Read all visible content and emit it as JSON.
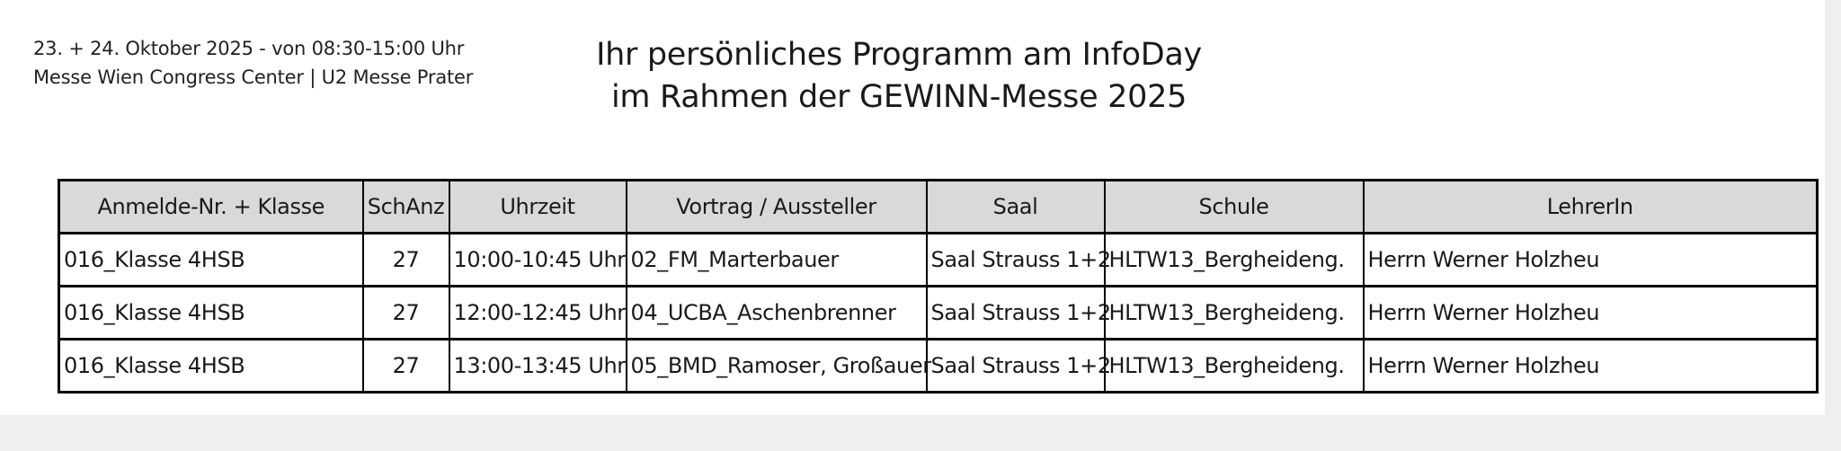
{
  "event_info": {
    "date_line": "23. + 24. Oktober 2025 - von 08:30-15:00 Uhr",
    "location_line": "Messe Wien Congress Center | U2 Messe Prater"
  },
  "title": {
    "line1": "Ihr persönliches Programm am InfoDay",
    "line2": "im Rahmen der GEWINN-Messe 2025"
  },
  "table": {
    "headers": [
      "Anmelde-Nr. + Klasse",
      "SchAnz",
      "Uhrzeit",
      "Vortrag / Aussteller",
      "Saal",
      "Schule",
      "LehrerIn"
    ],
    "rows": [
      [
        "016_Klasse 4HSB",
        "27",
        "10:00-10:45 Uhr",
        "02_FM_Marterbauer",
        "Saal Strauss 1+2",
        "HLTW13_Bergheideng.",
        "Herrn Werner Holzheu"
      ],
      [
        "016_Klasse 4HSB",
        "27",
        "12:00-12:45 Uhr",
        "04_UCBA_Aschenbrenner",
        "Saal Strauss 1+2",
        "HLTW13_Bergheideng.",
        "Herrn Werner Holzheu"
      ],
      [
        "016_Klasse 4HSB",
        "27",
        "13:00-13:45 Uhr",
        "05_BMD_Ramoser, Großauer",
        "Saal Strauss 1+2",
        "HLTW13_Bergheideng.",
        "Herrn Werner Holzheu"
      ]
    ]
  },
  "colors": {
    "header_background": "#d9d9d9",
    "border": "#000000",
    "text": "#1a1a1a"
  }
}
